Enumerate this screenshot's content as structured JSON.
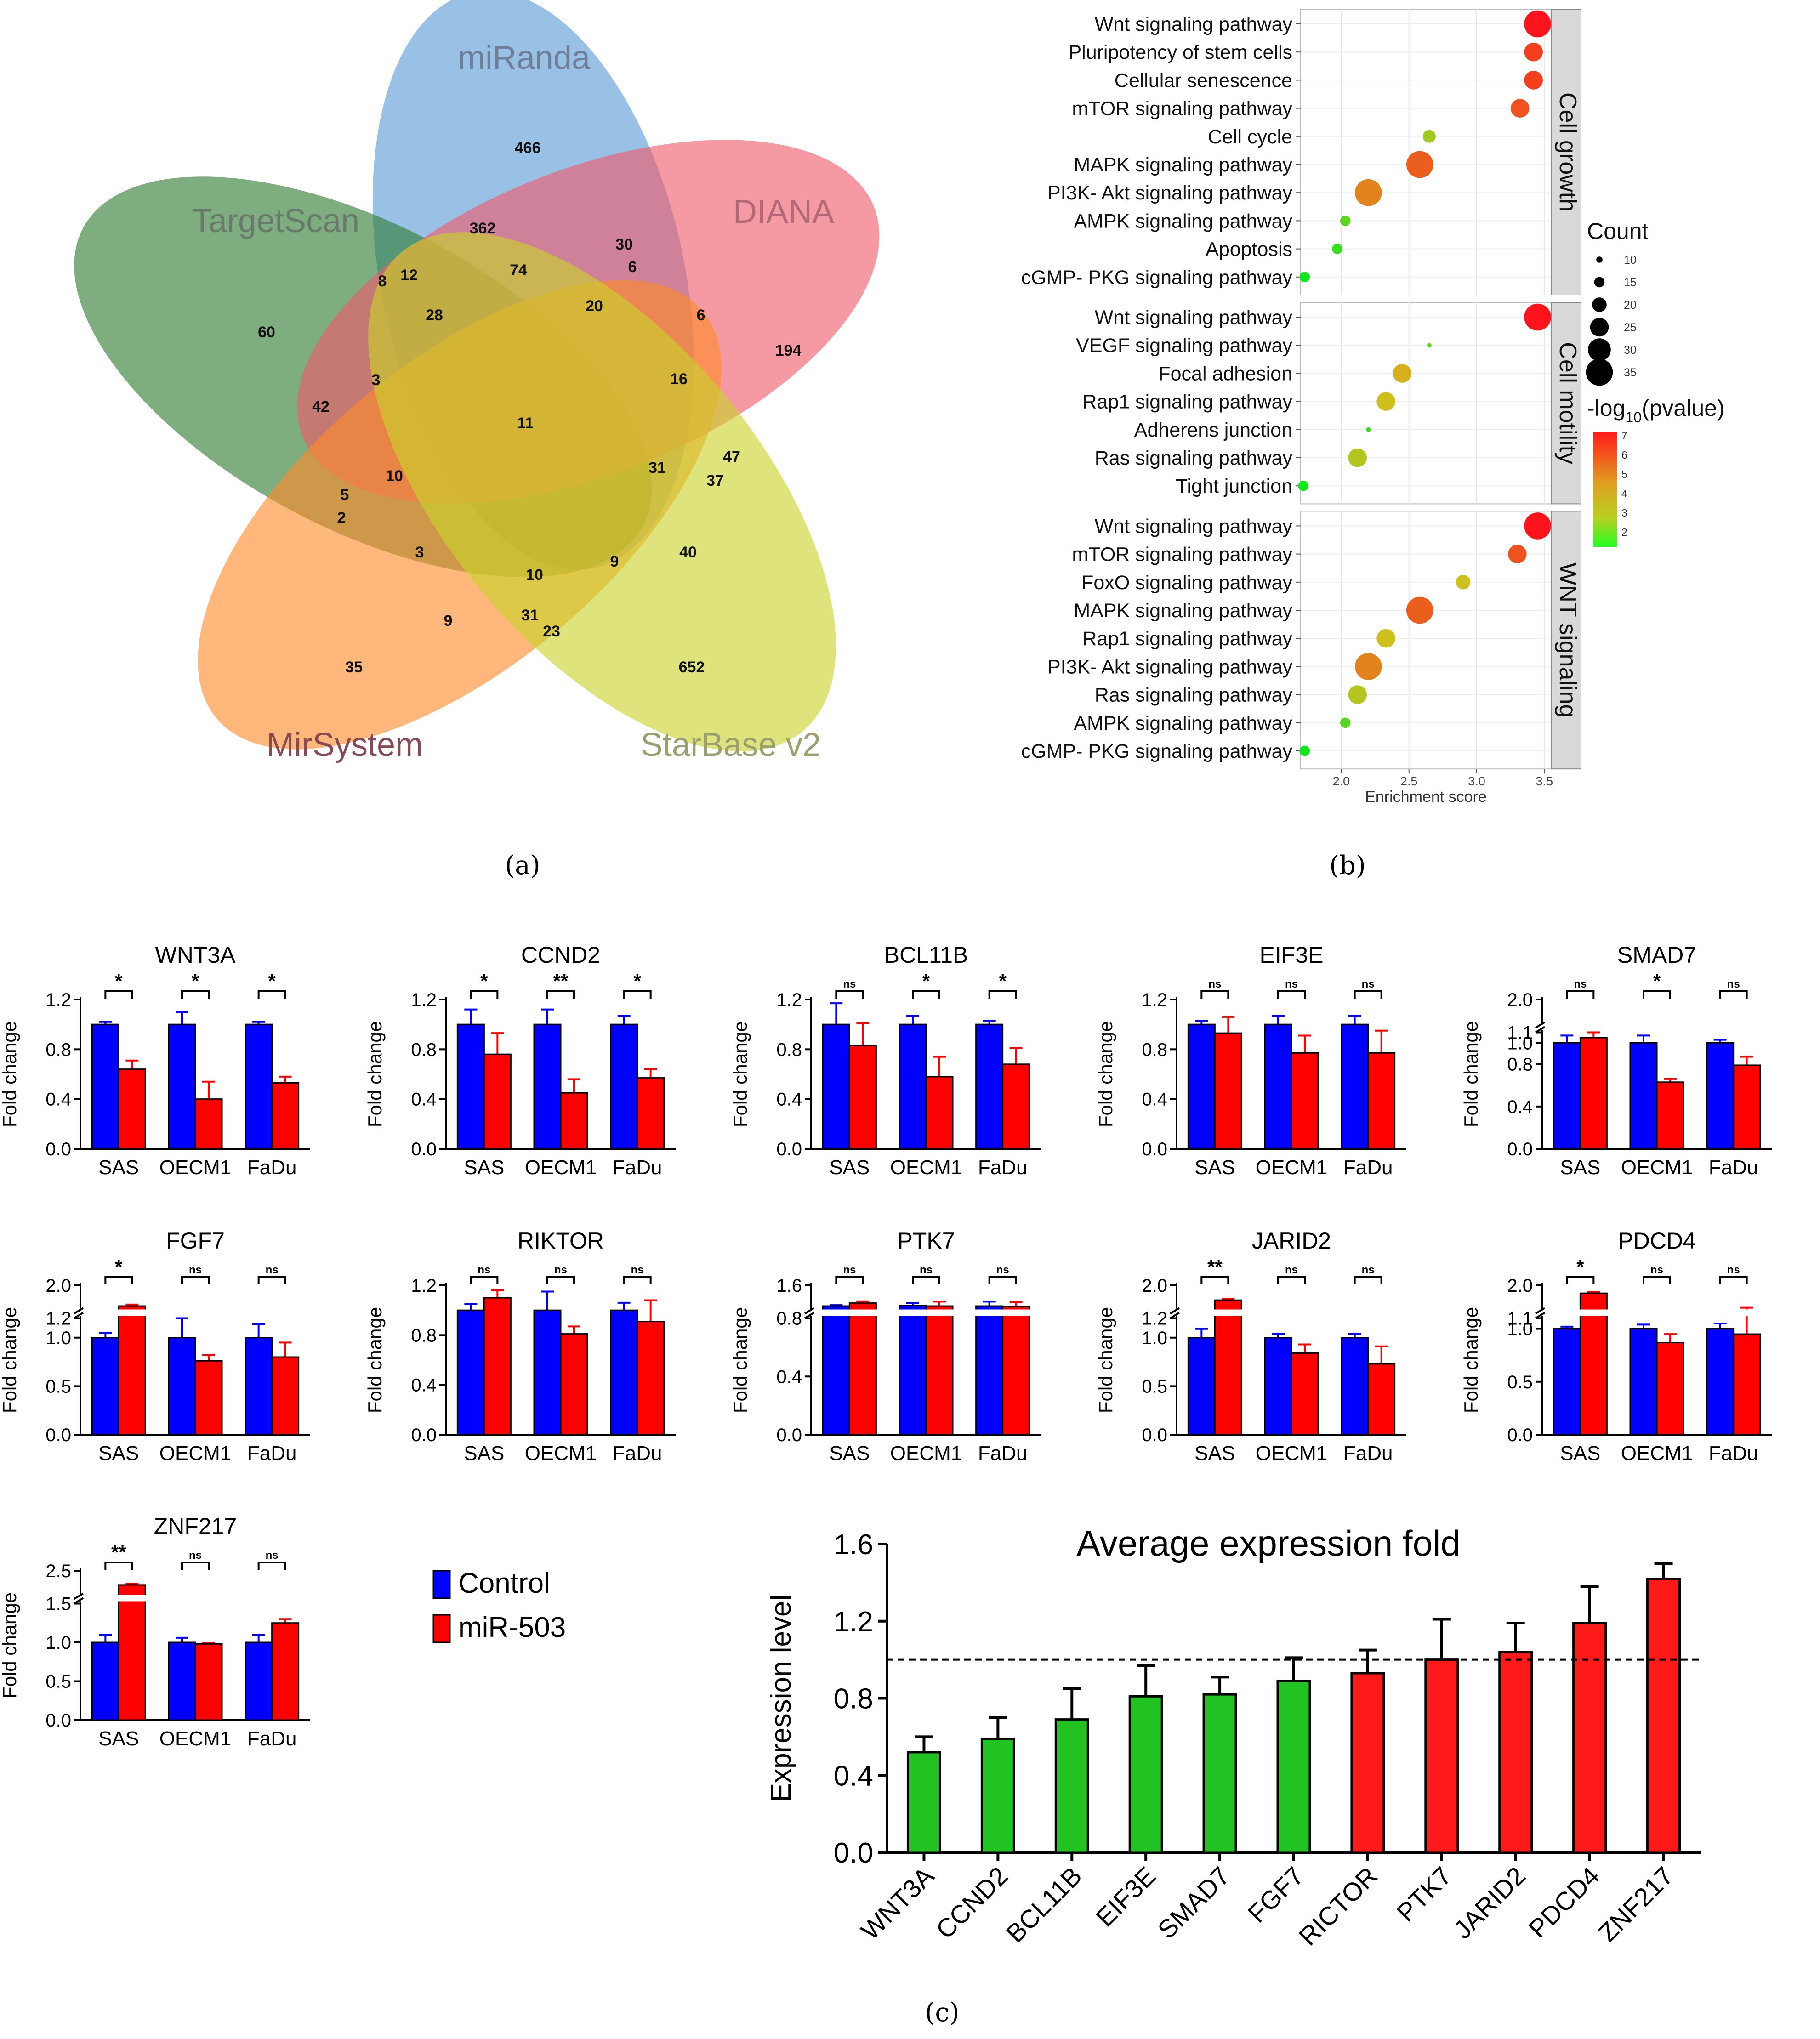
{
  "figure": {
    "panel_labels": [
      "(a)",
      "(b)",
      "(c)"
    ]
  },
  "venn": {
    "sets": [
      {
        "name": "miRanda",
        "color": "#5b9bd5"
      },
      {
        "name": "TargetScan",
        "color": "#2e7d32"
      },
      {
        "name": "DIANA",
        "color": "#ef5b6b"
      },
      {
        "name": "MirSystem",
        "color": "#ff8a2a"
      },
      {
        "name": "StarBase v2",
        "color": "#c9d42a"
      }
    ],
    "label_colors": {
      "miRanda": "#6f7f9a",
      "TargetScan": "#6a7a6a",
      "DIANA": "#b06a78",
      "MirSystem": "#8a4a55",
      "StarBase v2": "#9aa070"
    },
    "numbers": [
      "466",
      "362",
      "30",
      "6",
      "8",
      "12",
      "74",
      "20",
      "6",
      "60",
      "28",
      "194",
      "3",
      "16",
      "42",
      "11",
      "10",
      "31",
      "47",
      "37",
      "5",
      "2",
      "3",
      "10",
      "9",
      "40",
      "9",
      "31",
      "23",
      "35",
      "652"
    ]
  },
  "enrichment": {
    "groups": [
      {
        "name": "Cell growth",
        "terms": [
          {
            "term": "Wnt signaling pathway",
            "score": 3.45,
            "count": 35,
            "logp": 7.0
          },
          {
            "term": "Pluripotency of stem cells",
            "score": 3.42,
            "count": 25,
            "logp": 6.3
          },
          {
            "term": "Cellular senescence",
            "score": 3.42,
            "count": 25,
            "logp": 6.3
          },
          {
            "term": "mTOR signaling pathway",
            "score": 3.32,
            "count": 25,
            "logp": 6.0
          },
          {
            "term": "Cell cycle",
            "score": 2.65,
            "count": 18,
            "logp": 3.5
          },
          {
            "term": "MAPK signaling pathway",
            "score": 2.58,
            "count": 35,
            "logp": 5.8
          },
          {
            "term": "PI3K- Akt signaling pathway",
            "score": 2.2,
            "count": 35,
            "logp": 5.2
          },
          {
            "term": "AMPK signaling pathway",
            "score": 2.03,
            "count": 15,
            "logp": 2.5
          },
          {
            "term": "Apoptosis",
            "score": 1.97,
            "count": 15,
            "logp": 2.0
          },
          {
            "term": "cGMP- PKG signaling pathway",
            "score": 1.73,
            "count": 15,
            "logp": 1.5
          }
        ]
      },
      {
        "name": "Cell motility",
        "terms": [
          {
            "term": "Wnt signaling pathway",
            "score": 3.45,
            "count": 35,
            "logp": 7.0
          },
          {
            "term": "VEGF signaling pathway",
            "score": 2.65,
            "count": 8,
            "logp": 2.5
          },
          {
            "term": "Focal adhesion",
            "score": 2.45,
            "count": 25,
            "logp": 4.5
          },
          {
            "term": "Rap1 signaling pathway",
            "score": 2.33,
            "count": 25,
            "logp": 4.2
          },
          {
            "term": "Adherens junction",
            "score": 2.2,
            "count": 8,
            "logp": 2.0
          },
          {
            "term": "Ras signaling pathway",
            "score": 2.12,
            "count": 25,
            "logp": 3.8
          },
          {
            "term": "Tight junction",
            "score": 1.72,
            "count": 15,
            "logp": 1.5
          }
        ]
      },
      {
        "name": "WNT signaling",
        "terms": [
          {
            "term": "Wnt signaling pathway",
            "score": 3.45,
            "count": 35,
            "logp": 7.0
          },
          {
            "term": "mTOR signaling pathway",
            "score": 3.3,
            "count": 25,
            "logp": 6.0
          },
          {
            "term": "FoxO signaling pathway",
            "score": 2.9,
            "count": 20,
            "logp": 4.2
          },
          {
            "term": "MAPK signaling pathway",
            "score": 2.58,
            "count": 35,
            "logp": 5.8
          },
          {
            "term": "Rap1 signaling pathway",
            "score": 2.33,
            "count": 25,
            "logp": 4.2
          },
          {
            "term": "PI3K- Akt signaling pathway",
            "score": 2.2,
            "count": 35,
            "logp": 5.2
          },
          {
            "term": "Ras signaling pathway",
            "score": 2.12,
            "count": 25,
            "logp": 3.8
          },
          {
            "term": "AMPK signaling pathway",
            "score": 2.03,
            "count": 15,
            "logp": 2.5
          },
          {
            "term": "cGMP- PKG signaling pathway",
            "score": 1.73,
            "count": 15,
            "logp": 1.5
          }
        ]
      }
    ],
    "xlabel": "Enrichment score",
    "xticks": [
      "2.0",
      "2.5",
      "3.0",
      "3.5"
    ],
    "count_legend": {
      "title": "Count",
      "values": [
        "10",
        "15",
        "20",
        "25",
        "30",
        "35"
      ]
    },
    "color_legend": {
      "title_prefix": "-log",
      "title_sub": "10",
      "title_suffix": "(pvalue)",
      "ticks": [
        "7",
        "6",
        "5",
        "4",
        "3",
        "2"
      ]
    }
  },
  "chart_data": [
    {
      "type": "bar",
      "title": "Average expression fold",
      "ylabel": "Expression level",
      "categories": [
        "WNT3A",
        "CCND2",
        "BCL11B",
        "EIF3E",
        "SMAD7",
        "FGF7",
        "RICTOR",
        "PTK7",
        "JARID2",
        "PDCD4",
        "ZNF217"
      ],
      "values": [
        0.52,
        0.59,
        0.69,
        0.81,
        0.82,
        0.89,
        0.93,
        1.0,
        1.04,
        1.19,
        1.42
      ],
      "errors": [
        0.08,
        0.11,
        0.16,
        0.16,
        0.09,
        0.12,
        0.12,
        0.21,
        0.15,
        0.19,
        0.08
      ],
      "ylim": [
        0,
        1.6
      ],
      "yticks": [
        "0.0",
        "0.4",
        "0.8",
        "1.2",
        "1.6"
      ],
      "reference_line": 1.0,
      "colors": {
        "down": "#22c222",
        "up": "#ff1a1a"
      }
    },
    {
      "type": "bar",
      "ylabel": "Fold change",
      "categories": [
        "SAS",
        "OECM1",
        "FaDu"
      ],
      "legend": {
        "series": [
          "Control",
          "miR-503"
        ],
        "colors": [
          "#0000ff",
          "#ff0000"
        ]
      },
      "panels": [
        {
          "title": "WNT3A",
          "yticks": [
            "0.0",
            "0.4",
            "0.8",
            "1.2"
          ],
          "ymax": 1.2,
          "control": [
            1.0,
            1.0,
            1.0
          ],
          "control_err": [
            0.02,
            0.1,
            0.02
          ],
          "mir": [
            0.64,
            0.4,
            0.53
          ],
          "mir_err": [
            0.07,
            0.14,
            0.05
          ],
          "sig": [
            "*",
            "*",
            "*"
          ]
        },
        {
          "title": "CCND2",
          "yticks": [
            "0.0",
            "0.4",
            "0.8",
            "1.2"
          ],
          "ymax": 1.2,
          "control": [
            1.0,
            1.0,
            1.0
          ],
          "control_err": [
            0.12,
            0.12,
            0.07
          ],
          "mir": [
            0.76,
            0.45,
            0.57
          ],
          "mir_err": [
            0.17,
            0.11,
            0.07
          ],
          "sig": [
            "*",
            "**",
            "*"
          ]
        },
        {
          "title": "BCL11B",
          "yticks": [
            "0.0",
            "0.4",
            "0.8",
            "1.2"
          ],
          "ymax": 1.2,
          "control": [
            1.0,
            1.0,
            1.0
          ],
          "control_err": [
            0.17,
            0.07,
            0.03
          ],
          "mir": [
            0.83,
            0.58,
            0.68
          ],
          "mir_err": [
            0.18,
            0.16,
            0.13
          ],
          "sig": [
            "ns",
            "*",
            "*"
          ]
        },
        {
          "title": "EIF3E",
          "yticks": [
            "0.0",
            "0.4",
            "0.8",
            "1.2"
          ],
          "ymax": 1.2,
          "control": [
            1.0,
            1.0,
            1.0
          ],
          "control_err": [
            0.03,
            0.07,
            0.07
          ],
          "mir": [
            0.93,
            0.77,
            0.77
          ],
          "mir_err": [
            0.13,
            0.14,
            0.18
          ],
          "sig": [
            "ns",
            "ns",
            "ns"
          ]
        },
        {
          "title": "SMAD7",
          "yticks": [
            "0.0",
            "0.4",
            "0.8",
            "1.0",
            "1.1",
            "2.0"
          ],
          "ymax": 2.0,
          "break": true,
          "control": [
            1.0,
            1.0,
            1.0
          ],
          "control_err": [
            0.07,
            0.07,
            0.03
          ],
          "mir": [
            1.05,
            0.63,
            0.79
          ],
          "mir_err": [
            0.05,
            0.03,
            0.08
          ],
          "sig": [
            "ns",
            "*",
            "ns"
          ]
        },
        {
          "title": "FGF7",
          "yticks": [
            "0.0",
            "0.5",
            "1.0",
            "1.2",
            "2.0"
          ],
          "ymax": 2.0,
          "break": true,
          "control": [
            1.0,
            1.0,
            1.0
          ],
          "control_err": [
            0.05,
            0.2,
            0.14
          ],
          "mir": [
            1.3,
            0.76,
            0.8
          ],
          "mir_err": [
            0.05,
            0.06,
            0.15
          ],
          "sig": [
            "*",
            "ns",
            "ns"
          ]
        },
        {
          "title": "RIKTOR",
          "yticks": [
            "0.0",
            "0.4",
            "0.8",
            "1.2"
          ],
          "ymax": 1.2,
          "control": [
            1.0,
            1.0,
            1.0
          ],
          "control_err": [
            0.05,
            0.15,
            0.06
          ],
          "mir": [
            1.1,
            0.81,
            0.91
          ],
          "mir_err": [
            0.06,
            0.06,
            0.17
          ],
          "sig": [
            "ns",
            "ns",
            "ns"
          ]
        },
        {
          "title": "PTK7",
          "yticks": [
            "0.0",
            "0.4",
            "0.8",
            "1.6"
          ],
          "ymax": 1.6,
          "break": true,
          "control": [
            0.9,
            0.92,
            0.9
          ],
          "control_err": [
            0.03,
            0.08,
            0.15
          ],
          "mir": [
            1.0,
            0.9,
            0.88
          ],
          "mir_err": [
            0.06,
            0.15,
            0.15
          ],
          "sig": [
            "ns",
            "ns",
            "ns"
          ]
        },
        {
          "title": "JARID2",
          "yticks": [
            "0.0",
            "0.5",
            "1.0",
            "1.2",
            "2.0"
          ],
          "ymax": 2.0,
          "break": true,
          "control": [
            1.0,
            1.0,
            1.0
          ],
          "control_err": [
            0.09,
            0.04,
            0.04
          ],
          "mir": [
            1.5,
            0.84,
            0.73
          ],
          "mir_err": [
            0.05,
            0.09,
            0.18
          ],
          "sig": [
            "**",
            "ns",
            "ns"
          ]
        },
        {
          "title": "PDCD4",
          "yticks": [
            "0.0",
            "0.5",
            "1.0",
            "1.1",
            "2.0"
          ],
          "ymax": 2.0,
          "break": true,
          "control": [
            1.0,
            1.0,
            1.0
          ],
          "control_err": [
            0.02,
            0.04,
            0.05
          ],
          "mir": [
            1.7,
            0.87,
            0.95
          ],
          "mir_err": [
            0.05,
            0.08,
            0.2
          ],
          "sig": [
            "*",
            "ns",
            "ns"
          ]
        },
        {
          "title": "ZNF217",
          "yticks": [
            "0.0",
            "0.5",
            "1.0",
            "1.5",
            "2.5"
          ],
          "ymax": 2.5,
          "break": true,
          "control": [
            1.0,
            1.0,
            1.0
          ],
          "control_err": [
            0.1,
            0.06,
            0.1
          ],
          "mir": [
            1.9,
            0.98,
            1.25
          ],
          "mir_err": [
            0.05,
            0.01,
            0.05
          ],
          "sig": [
            "**",
            "ns",
            "ns"
          ]
        }
      ]
    }
  ]
}
